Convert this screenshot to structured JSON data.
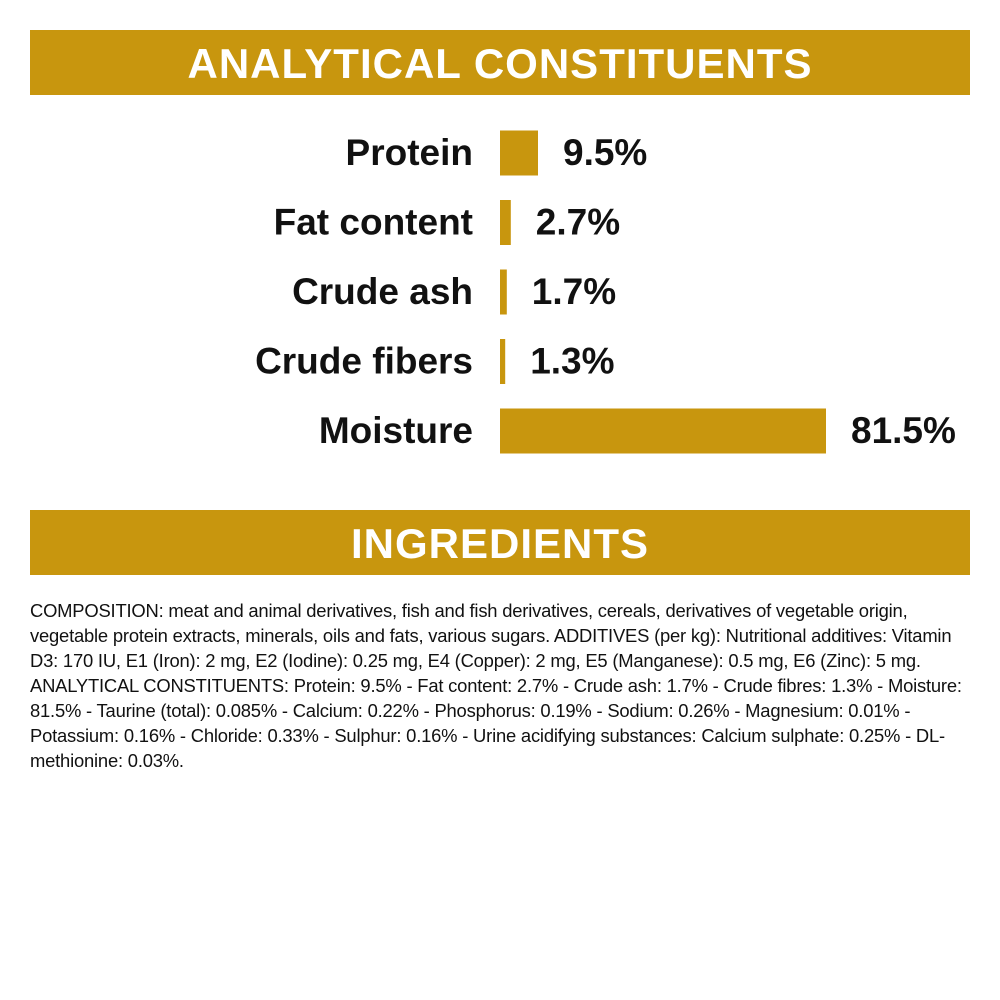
{
  "chart_data": {
    "type": "bar",
    "orientation": "horizontal",
    "title": "ANALYTICAL CONSTITUENTS",
    "categories": [
      "Protein",
      "Fat content",
      "Crude ash",
      "Crude fibers",
      "Moisture"
    ],
    "values": [
      9.5,
      2.7,
      1.7,
      1.3,
      81.5
    ],
    "value_labels": [
      "9.5%",
      "2.7%",
      "1.7%",
      "1.3%",
      "81.5%"
    ],
    "color": "#c8960e"
  },
  "ingredients": {
    "title": "INGREDIENTS",
    "text": "COMPOSITION: meat and animal derivatives, fish and fish derivatives, cereals, derivatives of vegetable origin, vegetable protein extracts, minerals, oils and fats, various sugars. ADDITIVES (per kg): Nutritional additives: Vitamin D3: 170 IU, E1 (Iron): 2 mg, E2 (Iodine): 0.25 mg, E4 (Copper): 2 mg, E5 (Manganese): 0.5 mg, E6 (Zinc): 5 mg. ANALYTICAL CONSTITUENTS: Protein: 9.5% - Fat content: 2.7% - Crude ash: 1.7% - Crude fibres: 1.3% - Moisture: 81.5% - Taurine (total): 0.085% - Calcium: 0.22% - Phosphorus: 0.19% - Sodium: 0.26% - Magnesium: 0.01% - Potassium: 0.16% - Chloride: 0.33% - Sulphur: 0.16% - Urine acidifying substances: Calcium sulphate: 0.25% - DL-methionine: 0.03%."
  }
}
